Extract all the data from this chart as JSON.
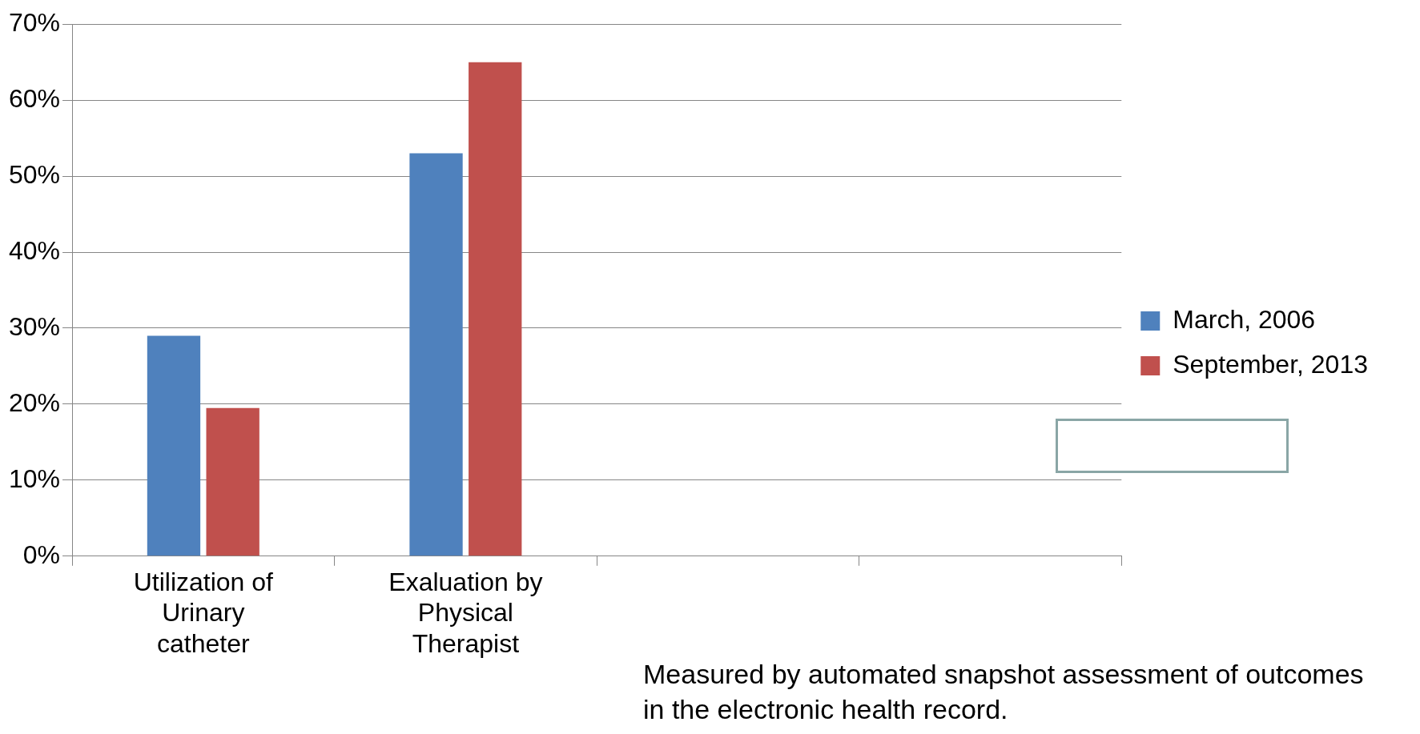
{
  "chart_data": {
    "type": "bar",
    "categories": [
      "Utilization of Urinary catheter",
      "Exaluation by Physical Therapist",
      null,
      null
    ],
    "series": [
      {
        "name": "March, 2006",
        "color": "#4f81bd",
        "values": [
          29,
          53,
          null,
          null
        ]
      },
      {
        "name": "September, 2013",
        "color": "#c0504d",
        "values": [
          19.5,
          65,
          null,
          null
        ]
      }
    ],
    "ylim": [
      0,
      70
    ],
    "yticks": [
      {
        "value": 0,
        "label": "0%"
      },
      {
        "value": 10,
        "label": "10%"
      },
      {
        "value": 20,
        "label": "20%"
      },
      {
        "value": 30,
        "label": "30%"
      },
      {
        "value": 40,
        "label": "40%"
      },
      {
        "value": 50,
        "label": "50%"
      },
      {
        "value": 60,
        "label": "60%"
      },
      {
        "value": 70,
        "label": "70%"
      }
    ],
    "grid": "y",
    "legend": "right",
    "annotations": [
      "Measured by automated snapshot assessment of outcomes in the electronic health record."
    ]
  }
}
